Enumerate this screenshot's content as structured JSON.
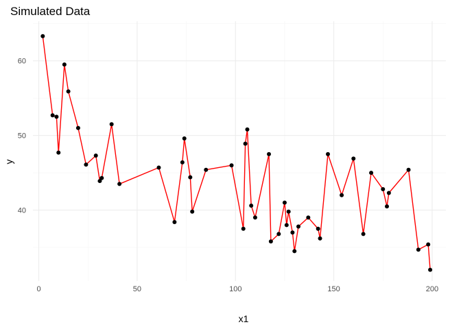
{
  "chart_data": {
    "type": "line",
    "title": "Simulated Data",
    "xlabel": "x1",
    "ylabel": "y",
    "xlim": [
      -3,
      207
    ],
    "ylim": [
      30.5,
      65.3
    ],
    "x_ticks": [
      0,
      50,
      100,
      150,
      200
    ],
    "y_ticks": [
      40,
      50,
      60
    ],
    "grid": true,
    "line_color": "#ff0000",
    "point_color": "#000000",
    "series": [
      {
        "x": [
          2,
          7,
          9,
          10,
          13,
          15,
          20,
          24,
          29,
          31,
          32,
          37,
          41,
          61,
          69,
          73,
          74,
          77,
          78,
          85,
          98,
          104,
          105,
          106,
          108,
          110,
          117,
          118,
          122,
          125,
          126,
          127,
          129,
          130,
          132,
          137,
          142,
          143,
          147,
          154,
          160,
          165,
          169,
          175,
          177,
          178,
          188,
          193,
          198,
          199
        ],
        "y": [
          63.3,
          52.7,
          52.5,
          47.7,
          59.5,
          55.9,
          51.0,
          46.1,
          47.3,
          43.9,
          44.3,
          51.5,
          43.5,
          45.7,
          38.4,
          46.4,
          49.6,
          44.4,
          39.8,
          45.4,
          46.0,
          37.5,
          48.9,
          50.8,
          40.6,
          39.0,
          47.5,
          35.8,
          36.8,
          41.0,
          38.0,
          39.8,
          37.0,
          34.5,
          37.8,
          39.0,
          37.5,
          36.2,
          47.5,
          42.0,
          46.9,
          36.8,
          45.0,
          42.8,
          40.5,
          42.3,
          45.4,
          34.7,
          35.4,
          32.0
        ]
      }
    ]
  }
}
